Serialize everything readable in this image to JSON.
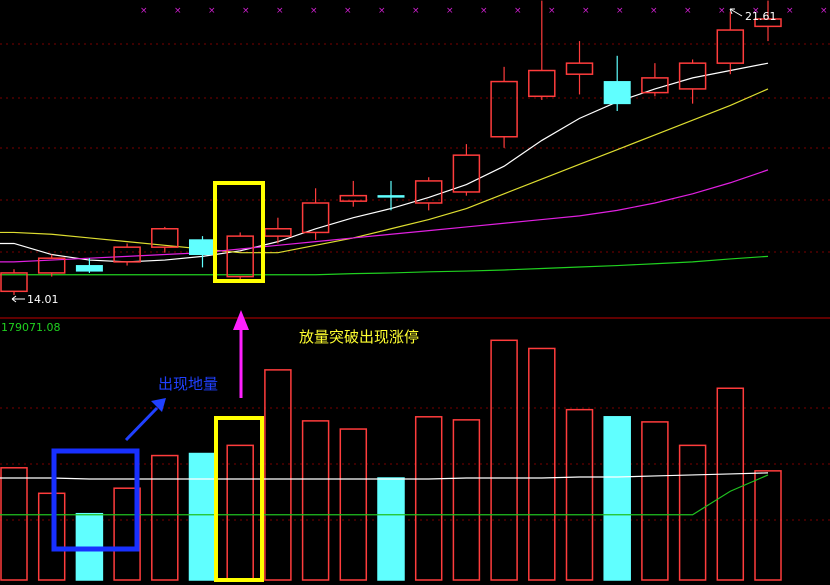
{
  "chart_data": [
    {
      "type": "candlestick",
      "panel": "price",
      "annotations": {
        "high_label": "21.61",
        "low_label": "14.01"
      },
      "candles": [
        {
          "open": 14.2,
          "close": 13.7,
          "high": 14.3,
          "low": 13.6,
          "color": "red"
        },
        {
          "open": 14.2,
          "close": 14.6,
          "high": 14.7,
          "low": 14.1,
          "color": "red"
        },
        {
          "open": 14.4,
          "close": 14.25,
          "high": 14.6,
          "low": 14.2,
          "color": "cyan"
        },
        {
          "open": 14.5,
          "close": 14.9,
          "high": 15.0,
          "low": 14.4,
          "color": "red"
        },
        {
          "open": 14.9,
          "close": 15.4,
          "high": 15.45,
          "low": 14.75,
          "color": "red"
        },
        {
          "open": 15.1,
          "close": 14.7,
          "high": 15.2,
          "low": 14.35,
          "color": "cyan"
        },
        {
          "open": 14.1,
          "close": 15.2,
          "high": 15.3,
          "low": 14.0,
          "color": "red"
        },
        {
          "open": 15.2,
          "close": 15.4,
          "high": 15.7,
          "low": 15.0,
          "color": "red"
        },
        {
          "open": 15.3,
          "close": 16.1,
          "high": 16.5,
          "low": 15.1,
          "color": "red"
        },
        {
          "open": 16.15,
          "close": 16.3,
          "high": 16.7,
          "low": 16.0,
          "color": "red"
        },
        {
          "open": 16.3,
          "close": 16.3,
          "high": 16.7,
          "low": 15.9,
          "color": "cyan"
        },
        {
          "open": 16.1,
          "close": 16.7,
          "high": 16.8,
          "low": 15.9,
          "color": "red"
        },
        {
          "open": 16.4,
          "close": 17.4,
          "high": 17.7,
          "low": 16.3,
          "color": "red"
        },
        {
          "open": 17.9,
          "close": 19.4,
          "high": 19.8,
          "low": 17.6,
          "color": "red"
        },
        {
          "open": 19.0,
          "close": 19.7,
          "high": 21.6,
          "low": 18.9,
          "color": "red"
        },
        {
          "open": 19.6,
          "close": 19.9,
          "high": 20.5,
          "low": 19.05,
          "color": "red"
        },
        {
          "open": 18.8,
          "close": 19.4,
          "high": 20.1,
          "low": 18.6,
          "color": "cyan"
        },
        {
          "open": 19.1,
          "close": 19.5,
          "high": 19.9,
          "low": 19.0,
          "color": "red"
        },
        {
          "open": 19.2,
          "close": 19.9,
          "high": 20.0,
          "low": 18.8,
          "color": "red"
        },
        {
          "open": 19.9,
          "close": 20.8,
          "high": 21.3,
          "low": 19.6,
          "color": "red"
        },
        {
          "open": 20.9,
          "close": 21.1,
          "high": 21.6,
          "low": 20.5,
          "color": "red"
        }
      ],
      "ma_lines": [
        {
          "color": "#ffffff",
          "values": [
            15.0,
            14.7,
            14.55,
            14.5,
            14.55,
            14.65,
            14.8,
            15.05,
            15.4,
            15.7,
            15.95,
            16.25,
            16.6,
            17.1,
            17.8,
            18.4,
            18.85,
            19.2,
            19.5,
            19.7,
            19.9
          ]
        },
        {
          "color": "#dddd30",
          "values": [
            15.3,
            15.25,
            15.15,
            15.05,
            14.95,
            14.85,
            14.75,
            14.75,
            14.95,
            15.15,
            15.4,
            15.65,
            15.95,
            16.35,
            16.75,
            17.15,
            17.55,
            17.95,
            18.35,
            18.75,
            19.2
          ]
        },
        {
          "color": "#e020e0",
          "values": [
            14.5,
            14.55,
            14.6,
            14.65,
            14.7,
            14.75,
            14.85,
            14.95,
            15.05,
            15.15,
            15.25,
            15.35,
            15.45,
            15.55,
            15.65,
            15.75,
            15.9,
            16.1,
            16.35,
            16.65,
            17.0
          ]
        },
        {
          "color": "#20d020",
          "values": [
            14.15,
            14.15,
            14.15,
            14.15,
            14.15,
            14.15,
            14.15,
            14.15,
            14.15,
            14.18,
            14.2,
            14.23,
            14.25,
            14.28,
            14.32,
            14.36,
            14.4,
            14.45,
            14.5,
            14.58,
            14.65
          ]
        }
      ]
    },
    {
      "type": "bar",
      "panel": "volume",
      "title": "179071.08",
      "values": [
        1100,
        850,
        650,
        900,
        1220,
        1240,
        1320,
        2060,
        1560,
        1480,
        1000,
        1600,
        1570,
        2350,
        2270,
        1670,
        1600,
        1550,
        1320,
        1880,
        1070
      ],
      "colors": [
        "red",
        "red",
        "cyan",
        "red",
        "red",
        "cyan",
        "red",
        "red",
        "red",
        "red",
        "cyan",
        "red",
        "red",
        "red",
        "red",
        "red",
        "cyan",
        "red",
        "red",
        "red",
        "red"
      ],
      "ma_lines": [
        {
          "color": "#ffffff",
          "values": [
            1000,
            1000,
            990,
            990,
            990,
            990,
            990,
            990,
            990,
            990,
            990,
            990,
            1000,
            1000,
            1000,
            1010,
            1010,
            1020,
            1030,
            1040,
            1050
          ]
        },
        {
          "color": "#20c020",
          "values": [
            640,
            640,
            640,
            640,
            640,
            640,
            640,
            640,
            640,
            640,
            640,
            640,
            640,
            640,
            640,
            640,
            640,
            640,
            640,
            870,
            1030
          ]
        }
      ]
    }
  ],
  "annotations": {
    "breakout_label": "放量突破出现涨停",
    "volume_label": "出现地量"
  }
}
